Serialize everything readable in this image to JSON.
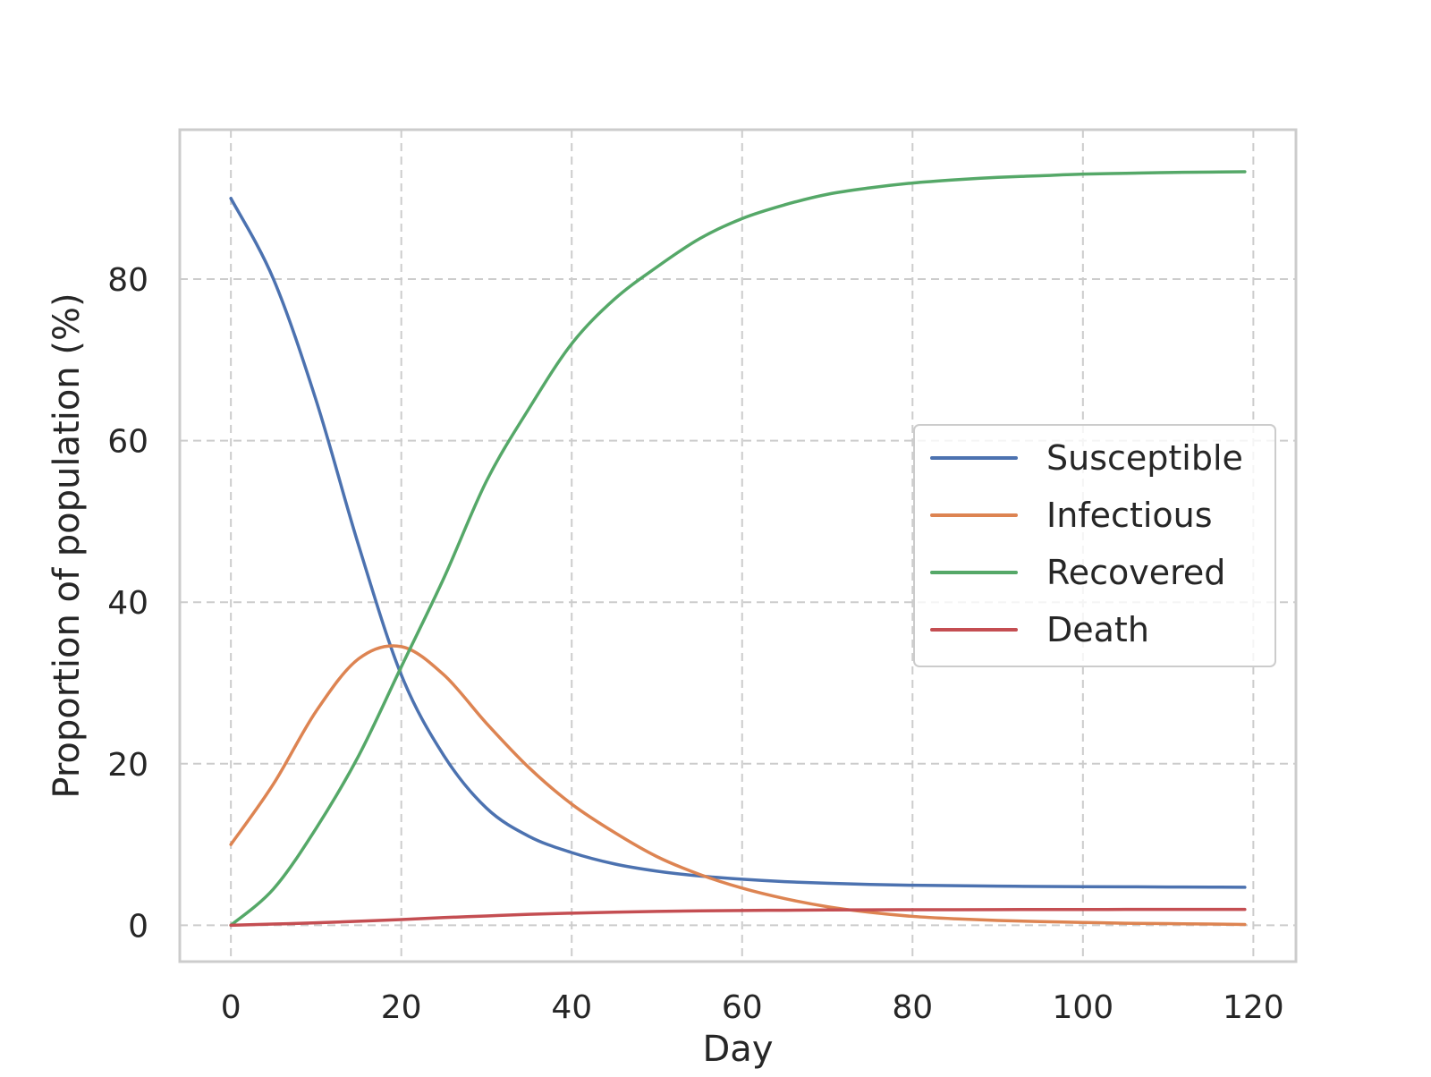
{
  "chart_data": {
    "type": "line",
    "title": "",
    "xlabel": "Day",
    "ylabel": "Proportion of population (%)",
    "xlim": [
      -6,
      125
    ],
    "ylim": [
      -4.5,
      98.5
    ],
    "x_ticks": [
      0,
      20,
      40,
      60,
      80,
      100,
      120
    ],
    "y_ticks": [
      0,
      20,
      40,
      60,
      80
    ],
    "x_tick_labels": [
      "0",
      "20",
      "40",
      "60",
      "80",
      "100",
      "120"
    ],
    "y_tick_labels": [
      "0",
      "20",
      "40",
      "60",
      "80"
    ],
    "grid": true,
    "grid_style": "dashed",
    "legend_position": "center-right",
    "x": [
      0,
      5,
      10,
      15,
      20,
      25,
      30,
      35,
      40,
      45,
      50,
      55,
      60,
      65,
      70,
      75,
      80,
      85,
      90,
      95,
      100,
      105,
      110,
      115,
      119
    ],
    "series": [
      {
        "name": "Susceptible",
        "color": "#4c72b0",
        "values": [
          90.0,
          80.0,
          65.0,
          47.0,
          31.0,
          21.0,
          14.5,
          11.0,
          9.0,
          7.6,
          6.7,
          6.1,
          5.7,
          5.4,
          5.2,
          5.05,
          4.95,
          4.9,
          4.85,
          4.8,
          4.78,
          4.76,
          4.74,
          4.72,
          4.7
        ]
      },
      {
        "name": "Infectious",
        "color": "#dd8452",
        "values": [
          10.0,
          17.5,
          26.5,
          33.0,
          34.5,
          31.0,
          25.0,
          19.5,
          15.0,
          11.5,
          8.5,
          6.3,
          4.6,
          3.3,
          2.3,
          1.6,
          1.1,
          0.8,
          0.6,
          0.45,
          0.35,
          0.25,
          0.2,
          0.15,
          0.1
        ]
      },
      {
        "name": "Recovered",
        "color": "#55a868",
        "values": [
          0.0,
          4.5,
          12.0,
          21.0,
          32.0,
          43.0,
          55.0,
          64.0,
          72.0,
          77.5,
          81.5,
          85.0,
          87.5,
          89.2,
          90.5,
          91.3,
          91.9,
          92.3,
          92.6,
          92.8,
          93.0,
          93.1,
          93.2,
          93.25,
          93.3
        ]
      },
      {
        "name": "Death",
        "color": "#c44e52",
        "values": [
          0.0,
          0.15,
          0.3,
          0.5,
          0.7,
          0.95,
          1.15,
          1.35,
          1.5,
          1.62,
          1.72,
          1.78,
          1.83,
          1.86,
          1.89,
          1.91,
          1.92,
          1.93,
          1.94,
          1.95,
          1.95,
          1.96,
          1.96,
          1.96,
          1.96
        ]
      }
    ]
  }
}
